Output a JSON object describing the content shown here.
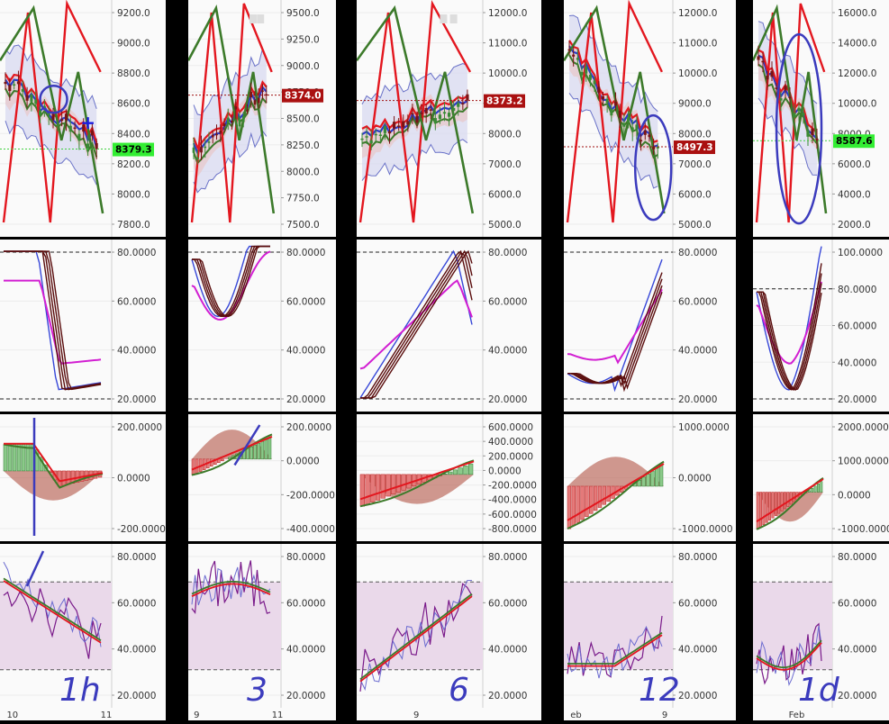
{
  "colors": {
    "up": "#3a8a35",
    "down": "#7a1416",
    "ma_red": "#e3171f",
    "ma_blue": "#2b3cc8",
    "ma_green": "#3c7a2a",
    "band": "#6a72c8",
    "fill_band": "#d8daf0",
    "fill_pink": "#e8c8c8",
    "stoch_blue": "#3747d8",
    "stoch_magenta": "#d21fd2",
    "stoch_dark": "#5a0d0d",
    "macd_pos": "#8bc98a",
    "macd_neg": "#e47a7a",
    "macd_brown": "#c0756a",
    "rsi_zone": "#ead9ea",
    "rsi_purple": "#7a1a8a",
    "annotation": "#3b3bbd",
    "label_green": "#33ee33",
    "label_red": "#aa1010"
  },
  "panels": [
    {
      "timeframe": "1h",
      "price_ticks": [
        "9200.0",
        "9000.0",
        "8800.0",
        "8600.0",
        "8400.0",
        "8200.0",
        "8000.0",
        "7800.0"
      ],
      "price_label": "8379.3",
      "price_label_style": "green",
      "stoch_ticks": [
        "80.0000",
        "60.0000",
        "40.0000",
        "20.0000"
      ],
      "macd_ticks": [
        "200.0000",
        "0.0000",
        "-200.0000"
      ],
      "rsi_ticks": [
        "80.0000",
        "60.0000",
        "40.0000",
        "20.0000"
      ],
      "x_labels": [
        "10",
        "11"
      ]
    },
    {
      "timeframe": "3",
      "price_ticks": [
        "9500.0",
        "9250.0",
        "9000.0",
        "8750.0",
        "8500.0",
        "8250.0",
        "8000.0",
        "7750.0",
        "7500.0"
      ],
      "price_label": "8374.0",
      "price_label_style": "red",
      "stoch_ticks": [
        "80.0000",
        "60.0000",
        "40.0000",
        "20.0000"
      ],
      "macd_ticks": [
        "200.0000",
        "0.0000",
        "-200.0000",
        "-400.0000"
      ],
      "rsi_ticks": [
        "80.0000",
        "60.0000",
        "40.0000",
        "20.0000"
      ],
      "x_labels": [
        "9",
        "11"
      ]
    },
    {
      "timeframe": "6",
      "price_ticks": [
        "12000.0",
        "11000.0",
        "10000.0",
        "9000.0",
        "8000.0",
        "7000.0",
        "6000.0",
        "5000.0"
      ],
      "price_label": "8373.2",
      "price_label_style": "red",
      "stoch_ticks": [
        "80.0000",
        "60.0000",
        "40.0000",
        "20.0000"
      ],
      "macd_ticks": [
        "600.0000",
        "400.0000",
        "200.0000",
        "0.0000",
        "-200.0000",
        "-400.0000",
        "-600.0000",
        "-800.0000"
      ],
      "rsi_ticks": [
        "80.0000",
        "60.0000",
        "40.0000",
        "20.0000"
      ],
      "x_labels": [
        "9"
      ]
    },
    {
      "timeframe": "12",
      "price_ticks": [
        "12000.0",
        "11000.0",
        "10000.0",
        "9000.0",
        "8000.0",
        "7000.0",
        "6000.0",
        "5000.0"
      ],
      "price_label": "8497.3",
      "price_label_style": "red",
      "stoch_ticks": [
        "80.0000",
        "60.0000",
        "40.0000",
        "20.0000"
      ],
      "macd_ticks": [
        "1000.0000",
        "0.0000",
        "-1000.0000"
      ],
      "rsi_ticks": [
        "80.0000",
        "60.0000",
        "40.0000",
        "20.0000"
      ],
      "x_labels": [
        "eb",
        "9"
      ]
    },
    {
      "timeframe": "1d",
      "price_ticks": [
        "16000.0",
        "14000.0",
        "12000.0",
        "10000.0",
        "8000.0",
        "6000.0",
        "4000.0",
        "2000.0"
      ],
      "price_label": "8587.6",
      "price_label_style": "green",
      "stoch_ticks": [
        "100.0000",
        "80.0000",
        "60.0000",
        "40.0000",
        "20.0000"
      ],
      "macd_ticks": [
        "2000.0000",
        "1000.0000",
        "0.0000",
        "-1000.0000"
      ],
      "rsi_ticks": [
        "80.0000",
        "60.0000",
        "40.0000",
        "20.0000"
      ],
      "x_labels": [
        "Feb"
      ]
    }
  ]
}
